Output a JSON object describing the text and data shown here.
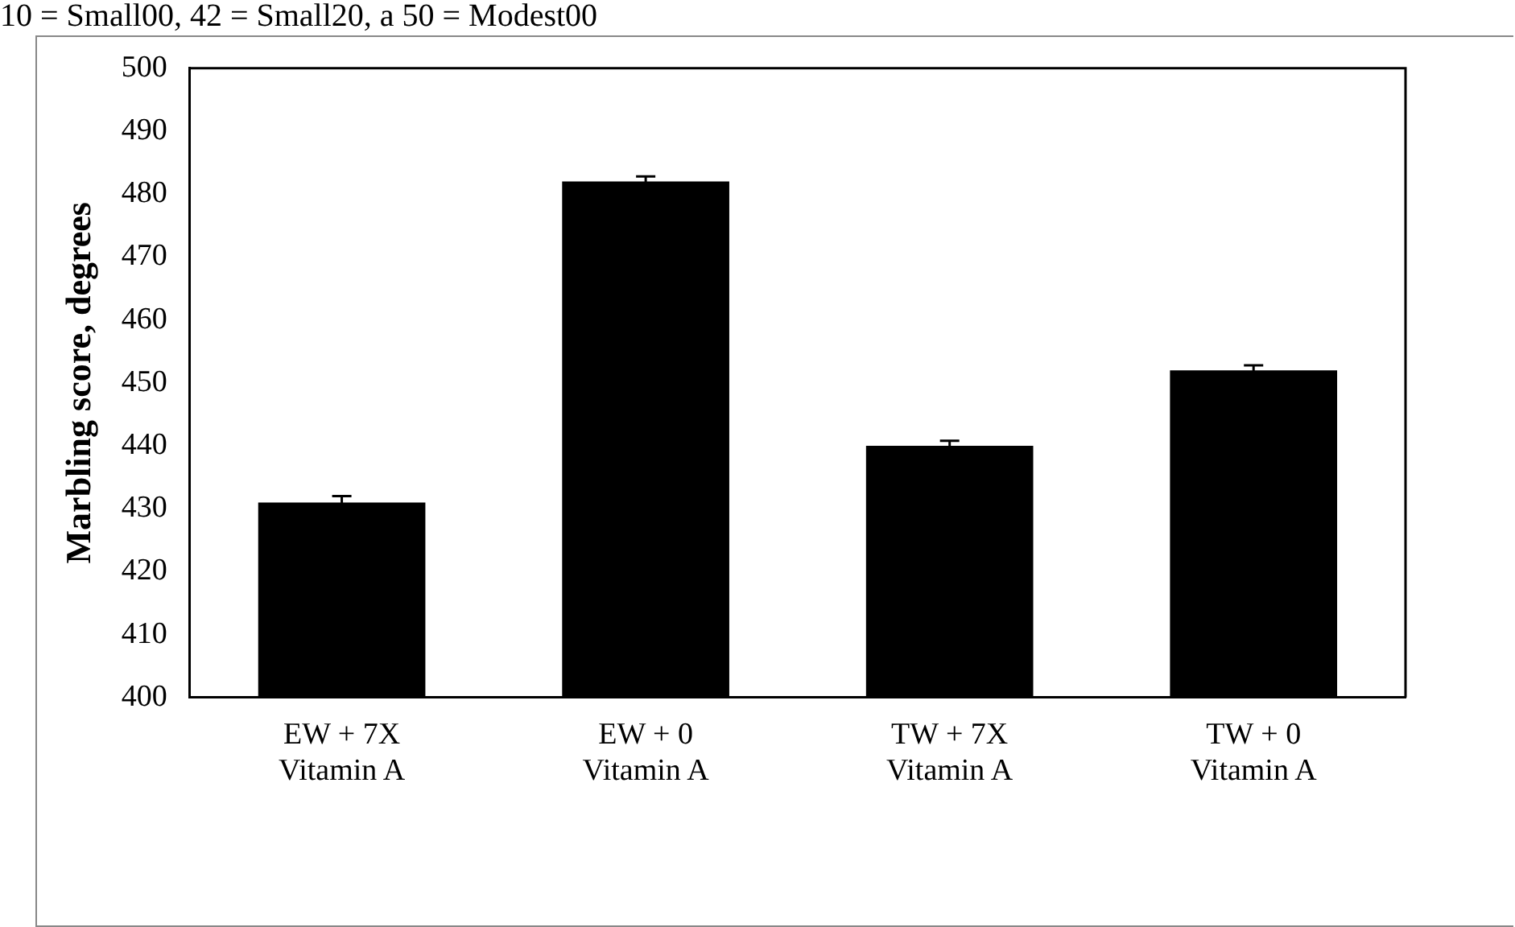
{
  "chart_data": {
    "type": "bar",
    "ylabel": "Marbling score, degrees",
    "categories": [
      "EW + 7X\nVitamin A",
      "EW + 0\nVitamin A",
      "TW + 7X\nVitamin A",
      "TW + 0\nVitamin A"
    ],
    "values": [
      431,
      482,
      440,
      452
    ],
    "color": "#000000",
    "errors": [
      1,
      0.8,
      0.8,
      0.8
    ],
    "ylim": [
      400,
      500
    ],
    "yticks": [
      400,
      410,
      420,
      430,
      440,
      450,
      460,
      470,
      480,
      490,
      500
    ],
    "grid": false,
    "legend": false,
    "annotations": [
      "10 = Small00, 42 = Small20, a 50 = Modest00"
    ]
  }
}
